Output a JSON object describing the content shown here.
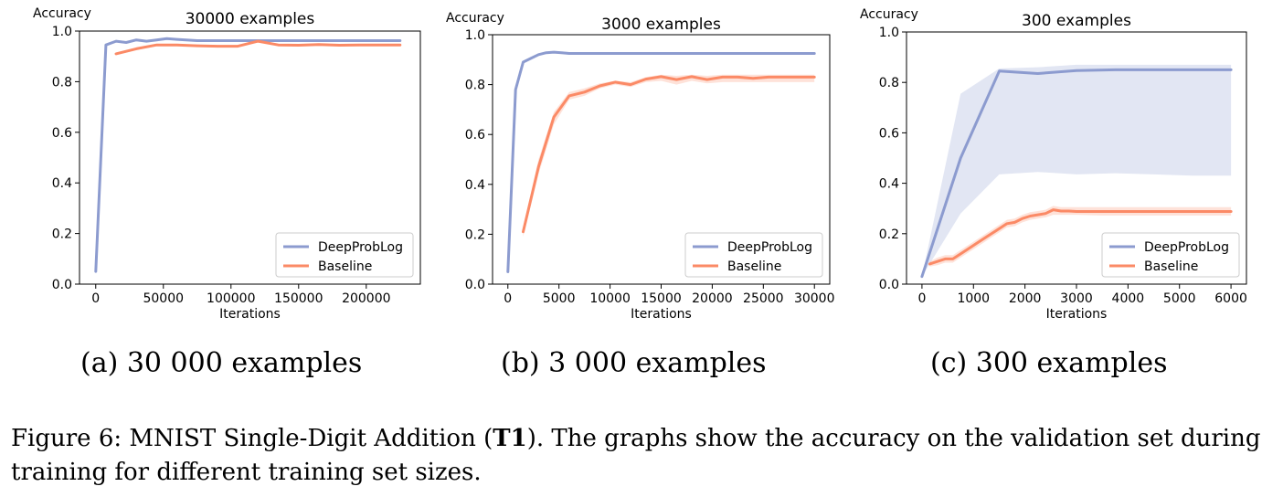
{
  "chart_data": [
    {
      "type": "line",
      "title": "30000 examples",
      "xlabel": "Iterations",
      "ylabel": "Accuracy",
      "xlim": [
        -12000,
        240000
      ],
      "ylim": [
        0.0,
        1.0
      ],
      "xticks": [
        0,
        50000,
        100000,
        150000,
        200000
      ],
      "yticks": [
        0.0,
        0.2,
        0.4,
        0.6,
        0.8,
        1.0
      ],
      "legend_position": "lower-right",
      "series": [
        {
          "name": "DeepProbLog",
          "color": "#8c9bcf",
          "x": [
            0,
            7500,
            15000,
            22500,
            30000,
            37500,
            45000,
            52500,
            60000,
            75000,
            90000,
            120000,
            150000,
            180000,
            225000
          ],
          "y": [
            0.05,
            0.945,
            0.96,
            0.955,
            0.965,
            0.96,
            0.965,
            0.97,
            0.967,
            0.962,
            0.962,
            0.962,
            0.962,
            0.962,
            0.962
          ]
        },
        {
          "name": "Baseline",
          "color": "#fb8a66",
          "x": [
            15000,
            30000,
            45000,
            60000,
            75000,
            90000,
            105000,
            120000,
            135000,
            150000,
            165000,
            180000,
            195000,
            210000,
            225000
          ],
          "y": [
            0.91,
            0.93,
            0.945,
            0.945,
            0.942,
            0.94,
            0.94,
            0.96,
            0.945,
            0.944,
            0.947,
            0.944,
            0.945,
            0.945,
            0.945
          ]
        }
      ]
    },
    {
      "type": "line",
      "title": "3000 examples",
      "xlabel": "Iterations",
      "ylabel": "Accuracy",
      "xlim": [
        -1500,
        31500
      ],
      "ylim": [
        0.0,
        1.0
      ],
      "xticks": [
        0,
        5000,
        10000,
        15000,
        20000,
        25000,
        30000
      ],
      "yticks": [
        0.0,
        0.2,
        0.4,
        0.6,
        0.8,
        1.0
      ],
      "legend_position": "lower-right",
      "series": [
        {
          "name": "DeepProbLog",
          "color": "#8c9bcf",
          "x": [
            0,
            750,
            1500,
            2250,
            3000,
            3750,
            4500,
            5250,
            6000,
            9000,
            12000,
            15000,
            18000,
            21000,
            24000,
            27000,
            30000
          ],
          "y": [
            0.05,
            0.78,
            0.89,
            0.905,
            0.92,
            0.928,
            0.93,
            0.928,
            0.925,
            0.925,
            0.925,
            0.925,
            0.925,
            0.925,
            0.925,
            0.925,
            0.925
          ],
          "band_lower": [
            0.05,
            0.77,
            0.885,
            0.9,
            0.915,
            0.925,
            0.925,
            0.923,
            0.92,
            0.92,
            0.92,
            0.92,
            0.92,
            0.92,
            0.92,
            0.92,
            0.92
          ],
          "band_upper": [
            0.05,
            0.79,
            0.895,
            0.91,
            0.925,
            0.931,
            0.933,
            0.931,
            0.93,
            0.93,
            0.93,
            0.93,
            0.93,
            0.93,
            0.93,
            0.93,
            0.93
          ]
        },
        {
          "name": "Baseline",
          "color": "#fb8a66",
          "x": [
            1500,
            3000,
            4500,
            6000,
            7500,
            9000,
            10500,
            12000,
            13500,
            15000,
            16500,
            18000,
            19500,
            21000,
            22500,
            24000,
            25500,
            27000,
            28500,
            30000
          ],
          "y": [
            0.21,
            0.47,
            0.67,
            0.755,
            0.77,
            0.795,
            0.81,
            0.8,
            0.822,
            0.832,
            0.82,
            0.832,
            0.82,
            0.83,
            0.83,
            0.825,
            0.83,
            0.83,
            0.83,
            0.83
          ],
          "band_lower": [
            0.19,
            0.44,
            0.64,
            0.74,
            0.755,
            0.785,
            0.8,
            0.79,
            0.81,
            0.815,
            0.8,
            0.815,
            0.805,
            0.81,
            0.81,
            0.81,
            0.81,
            0.81,
            0.81,
            0.81
          ],
          "band_upper": [
            0.23,
            0.5,
            0.69,
            0.77,
            0.785,
            0.805,
            0.815,
            0.81,
            0.83,
            0.84,
            0.835,
            0.84,
            0.835,
            0.84,
            0.84,
            0.84,
            0.84,
            0.84,
            0.84,
            0.84
          ]
        }
      ]
    },
    {
      "type": "line",
      "title": "300 examples",
      "xlabel": "Iterations",
      "ylabel": "Accuracy",
      "xlim": [
        -300,
        6300
      ],
      "ylim": [
        0.0,
        1.0
      ],
      "xticks": [
        0,
        1000,
        2000,
        3000,
        4000,
        5000,
        6000
      ],
      "yticks": [
        0.0,
        0.2,
        0.4,
        0.6,
        0.8,
        1.0
      ],
      "legend_position": "lower-right",
      "series": [
        {
          "name": "DeepProbLog",
          "color": "#8c9bcf",
          "x": [
            0,
            750,
            1500,
            2250,
            3000,
            3750,
            4500,
            5250,
            6000
          ],
          "y": [
            0.03,
            0.5,
            0.845,
            0.835,
            0.847,
            0.85,
            0.85,
            0.85,
            0.85
          ],
          "band_lower": [
            0.03,
            0.28,
            0.435,
            0.445,
            0.435,
            0.44,
            0.435,
            0.43,
            0.43
          ],
          "band_upper": [
            0.03,
            0.755,
            0.855,
            0.86,
            0.87,
            0.87,
            0.87,
            0.87,
            0.87
          ]
        },
        {
          "name": "Baseline",
          "color": "#fb8a66",
          "x": [
            150,
            300,
            450,
            600,
            750,
            900,
            1050,
            1200,
            1350,
            1500,
            1650,
            1800,
            1950,
            2100,
            2250,
            2400,
            2550,
            2700,
            2850,
            3000,
            3500,
            4000,
            4500,
            5000,
            5500,
            6000
          ],
          "y": [
            0.08,
            0.09,
            0.1,
            0.1,
            0.12,
            0.14,
            0.16,
            0.18,
            0.2,
            0.22,
            0.24,
            0.245,
            0.26,
            0.27,
            0.275,
            0.28,
            0.295,
            0.29,
            0.29,
            0.288,
            0.288,
            0.288,
            0.288,
            0.288,
            0.288,
            0.288
          ],
          "band_lower": [
            0.07,
            0.075,
            0.085,
            0.085,
            0.105,
            0.125,
            0.145,
            0.165,
            0.185,
            0.205,
            0.225,
            0.23,
            0.245,
            0.255,
            0.26,
            0.265,
            0.275,
            0.275,
            0.275,
            0.275,
            0.272,
            0.272,
            0.272,
            0.272,
            0.272,
            0.272
          ],
          "band_upper": [
            0.09,
            0.105,
            0.115,
            0.115,
            0.135,
            0.155,
            0.175,
            0.195,
            0.215,
            0.235,
            0.255,
            0.26,
            0.275,
            0.285,
            0.29,
            0.295,
            0.31,
            0.305,
            0.305,
            0.305,
            0.305,
            0.305,
            0.305,
            0.305,
            0.305,
            0.305
          ]
        }
      ]
    }
  ],
  "subcaptions": [
    "(a) 30 000 examples",
    "(b) 3 000 examples",
    "(c) 300 examples"
  ],
  "caption": {
    "prefix": "Figure 6: MNIST Single-Digit Addition (",
    "bold": "T1",
    "suffix": "). The graphs show the accuracy on the validation set during training for different training set sizes."
  }
}
